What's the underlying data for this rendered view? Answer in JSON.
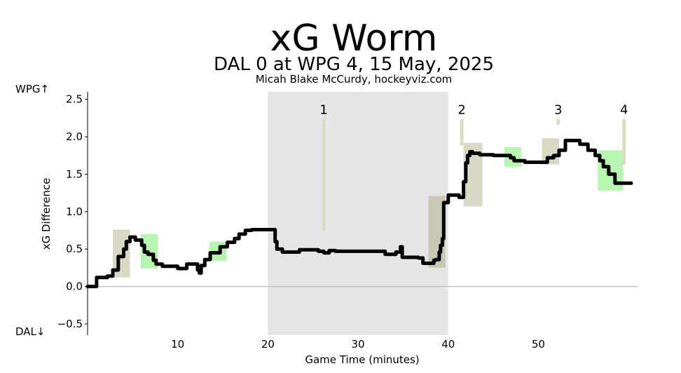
{
  "chart_data": {
    "type": "line",
    "title": "xG Worm",
    "subtitle": "DAL 0 at WPG 4, 15 May, 2025",
    "credit": "Micah Blake McCurdy, hockeyviz.com",
    "xlabel": "Game Time (minutes)",
    "ylabel": "xG Difference",
    "top_team_label": "WPG↑",
    "bottom_team_label": "DAL↓",
    "xlim": [
      0,
      61
    ],
    "ylim": [
      -0.65,
      2.6
    ],
    "x_ticks": [
      {
        "value": 10,
        "label": "10"
      },
      {
        "value": 20,
        "label": "20"
      },
      {
        "value": 30,
        "label": "30"
      },
      {
        "value": 40,
        "label": "40"
      },
      {
        "value": 50,
        "label": "50"
      }
    ],
    "y_ticks": [
      {
        "value": -0.5,
        "label": "−0.5"
      },
      {
        "value": 0.0,
        "label": "0.0"
      },
      {
        "value": 0.5,
        "label": "0.5"
      },
      {
        "value": 1.0,
        "label": "1.0"
      },
      {
        "value": 1.5,
        "label": "1.5"
      },
      {
        "value": 2.0,
        "label": "2.0"
      },
      {
        "value": 2.5,
        "label": "2.5"
      }
    ],
    "period_shading": {
      "start": 20,
      "end": 40,
      "color": "#e5e5e5"
    },
    "zero_line_color": "#c0c0c0",
    "worm_color": "#000000",
    "goals": [
      {
        "label": "1",
        "time": 26.2,
        "y_low": 0.75,
        "y_high": 2.22
      },
      {
        "label": "2",
        "time": 41.5,
        "y_low": 1.9,
        "y_high": 2.22
      },
      {
        "label": "3",
        "time": 52.2,
        "y_low": 2.18,
        "y_high": 2.22
      },
      {
        "label": "4",
        "time": 59.5,
        "y_low": 1.65,
        "y_high": 2.22
      }
    ],
    "goal_line_color": "#dcdcc4",
    "penalty_boxes": [
      {
        "start": 2.8,
        "end": 4.7,
        "y_low": 0.12,
        "y_high": 0.76,
        "team": "DAL",
        "color": "#d8d8c4"
      },
      {
        "start": 5.9,
        "end": 7.8,
        "y_low": 0.24,
        "y_high": 0.7,
        "team": "WPG",
        "color": "#b8f5b0"
      },
      {
        "start": 13.5,
        "end": 15.4,
        "y_low": 0.34,
        "y_high": 0.6,
        "team": "WPG",
        "color": "#b8f5b0"
      },
      {
        "start": 37.8,
        "end": 39.7,
        "y_low": 0.25,
        "y_high": 1.21,
        "team": "DAL",
        "color": "#c8c8b4"
      },
      {
        "start": 41.7,
        "end": 43.8,
        "y_low": 1.07,
        "y_high": 1.92,
        "team": "DAL",
        "color": "#d8d8c4"
      },
      {
        "start": 46.2,
        "end": 48.1,
        "y_low": 1.6,
        "y_high": 1.86,
        "team": "WPG",
        "color": "#b8f5b0"
      },
      {
        "start": 50.4,
        "end": 52.3,
        "y_low": 1.63,
        "y_high": 1.98,
        "team": "DAL",
        "color": "#d8d8c4"
      },
      {
        "start": 56.6,
        "end": 59.4,
        "y_low": 1.28,
        "y_high": 1.82,
        "team": "WPG",
        "color": "#b8f5b0"
      }
    ],
    "series": [
      {
        "x": [
          0,
          1.0,
          1.0,
          2.2,
          2.2,
          2.8,
          2.8,
          3.4,
          3.4,
          4.0,
          4.0,
          4.3,
          4.3,
          4.7,
          4.7,
          5.3,
          5.3,
          6.0,
          6.0,
          6.3,
          6.3,
          6.7,
          6.7,
          7.3,
          7.3,
          7.6,
          7.6,
          8.3,
          8.3,
          10.0,
          10.0,
          11.0,
          11.0,
          12.2,
          12.2,
          12.4,
          12.4,
          12.6,
          12.6,
          13.0,
          13.0,
          13.6,
          13.6,
          14.7,
          14.7,
          15.5,
          15.5,
          16.3,
          16.3,
          16.8,
          16.8,
          17.5,
          17.5,
          18.2,
          18.2,
          20.8,
          20.8,
          21.0,
          21.0,
          21.6,
          21.6,
          23.5,
          23.5,
          25.6,
          25.6,
          26.2,
          26.2,
          26.8,
          26.8,
          27.5,
          27.5,
          33.0,
          33.0,
          34.2,
          34.2,
          34.7,
          34.7,
          34.9,
          34.9,
          36.7,
          36.7,
          37.2,
          37.2,
          38.4,
          38.4,
          38.6,
          38.6,
          39.0,
          39.0,
          39.15,
          39.15,
          39.35,
          39.35,
          39.5,
          39.5,
          40.0,
          40.0,
          41.2,
          41.2,
          41.7,
          41.7,
          41.95,
          41.95,
          42.15,
          42.15,
          42.4,
          42.4,
          42.7,
          42.7,
          43.5,
          43.5,
          45.0,
          45.0,
          46.9,
          46.9,
          47.3,
          47.3,
          48.5,
          48.5,
          49.0,
          49.0,
          51.0,
          51.0,
          51.7,
          51.7,
          52.3,
          52.3,
          53.0,
          53.0,
          54.6,
          54.6,
          55.5,
          55.5,
          56.3,
          56.3,
          56.8,
          56.8,
          57.2,
          57.2,
          57.8,
          57.8,
          58.5,
          58.5,
          60.3
        ],
        "y": [
          0,
          0,
          0.12,
          0.12,
          0.14,
          0.14,
          0.22,
          0.22,
          0.4,
          0.4,
          0.5,
          0.5,
          0.6,
          0.6,
          0.66,
          0.66,
          0.62,
          0.62,
          0.55,
          0.55,
          0.46,
          0.46,
          0.43,
          0.43,
          0.35,
          0.35,
          0.3,
          0.3,
          0.27,
          0.27,
          0.24,
          0.24,
          0.3,
          0.3,
          0.22,
          0.22,
          0.18,
          0.18,
          0.28,
          0.28,
          0.36,
          0.36,
          0.45,
          0.45,
          0.53,
          0.53,
          0.59,
          0.59,
          0.64,
          0.64,
          0.7,
          0.7,
          0.75,
          0.75,
          0.76,
          0.76,
          0.6,
          0.6,
          0.5,
          0.5,
          0.46,
          0.46,
          0.49,
          0.49,
          0.47,
          0.47,
          0.45,
          0.45,
          0.48,
          0.48,
          0.47,
          0.47,
          0.43,
          0.43,
          0.46,
          0.46,
          0.53,
          0.53,
          0.39,
          0.39,
          0.38,
          0.38,
          0.31,
          0.31,
          0.35,
          0.35,
          0.36,
          0.36,
          0.46,
          0.46,
          0.55,
          0.55,
          0.64,
          0.64,
          1.12,
          1.12,
          1.22,
          1.22,
          1.19,
          1.19,
          1.4,
          1.4,
          1.65,
          1.65,
          1.75,
          1.75,
          1.8,
          1.8,
          1.78,
          1.78,
          1.76,
          1.76,
          1.75,
          1.75,
          1.72,
          1.72,
          1.68,
          1.68,
          1.66,
          1.66,
          1.66,
          1.66,
          1.72,
          1.72,
          1.75,
          1.75,
          1.82,
          1.82,
          1.95,
          1.95,
          1.9,
          1.9,
          1.82,
          1.82,
          1.75,
          1.75,
          1.68,
          1.68,
          1.6,
          1.6,
          1.5,
          1.5,
          1.38,
          1.38
        ]
      }
    ]
  }
}
